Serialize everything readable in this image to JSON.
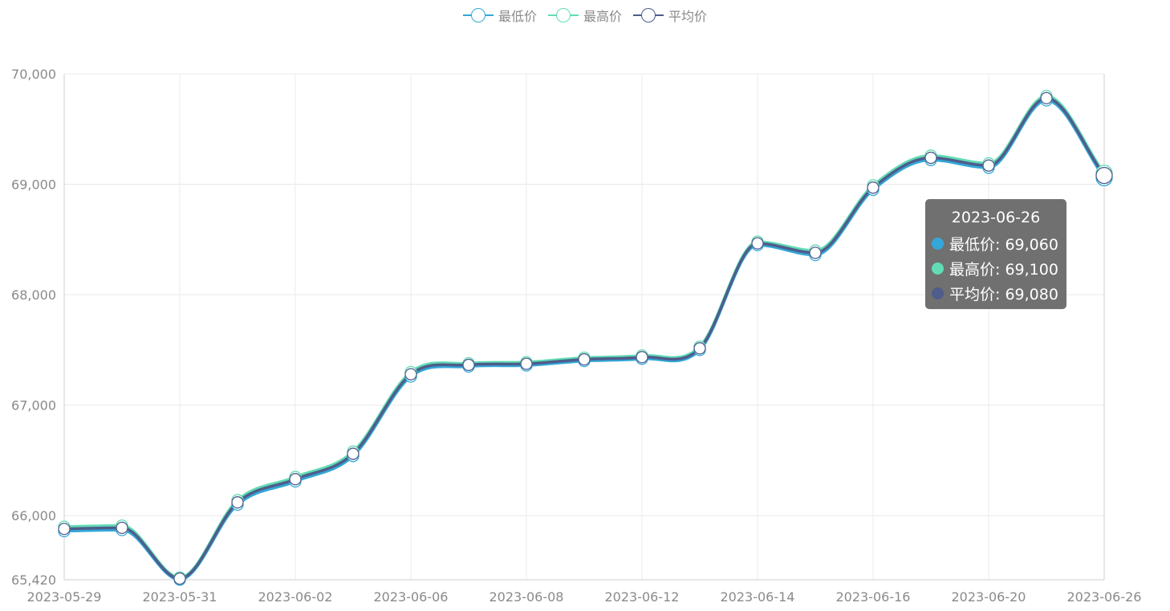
{
  "legend": [
    {
      "label": "最低价",
      "color": "#33a8d8"
    },
    {
      "label": "最高价",
      "color": "#62dcb4"
    },
    {
      "label": "平均价",
      "color": "#4e5d8c"
    }
  ],
  "tooltip": {
    "title": "2023-06-26",
    "rows": [
      {
        "text": "最低价: 69,060",
        "color": "#33a8d8"
      },
      {
        "text": "最高价: 69,100",
        "color": "#62dcb4"
      },
      {
        "text": "平均价: 69,080",
        "color": "#4e5d8c"
      }
    ]
  },
  "chart_data": {
    "type": "line",
    "smooth": true,
    "ylim": [
      65420,
      70000
    ],
    "yticks": [
      {
        "value": 65420,
        "label": "65,420"
      },
      {
        "value": 66000,
        "label": "66,000"
      },
      {
        "value": 67000,
        "label": "67,000"
      },
      {
        "value": 68000,
        "label": "68,000"
      },
      {
        "value": 69000,
        "label": "69,000"
      },
      {
        "value": 70000,
        "label": "70,000"
      }
    ],
    "x": [
      "2023-05-29",
      "2023-05-30",
      "2023-05-31",
      "2023-06-01",
      "2023-06-02",
      "2023-06-05",
      "2023-06-06",
      "2023-06-07",
      "2023-06-08",
      "2023-06-09",
      "2023-06-12",
      "2023-06-13",
      "2023-06-14",
      "2023-06-15",
      "2023-06-16",
      "2023-06-19",
      "2023-06-20",
      "2023-06-21",
      "2023-06-26"
    ],
    "xtick_labels": [
      "2023-05-29",
      "2023-05-31",
      "2023-06-02",
      "2023-06-06",
      "2023-06-08",
      "2023-06-12",
      "2023-06-14",
      "2023-06-16",
      "2023-06-20",
      "2023-06-26"
    ],
    "xtick_label_indices": [
      0,
      2,
      4,
      6,
      8,
      10,
      12,
      14,
      16,
      18
    ],
    "grid": true,
    "legend_position": "top-center",
    "series": [
      {
        "name": "最低价",
        "color": "#33a8d8",
        "values": [
          65860,
          65870,
          65420,
          66100,
          66310,
          66540,
          67260,
          67350,
          67360,
          67400,
          67420,
          67500,
          68450,
          68360,
          68950,
          69220,
          69150,
          69760,
          69060
        ]
      },
      {
        "name": "最高价",
        "color": "#62dcb4",
        "values": [
          65900,
          65910,
          65440,
          66140,
          66350,
          66580,
          67300,
          67380,
          67390,
          67430,
          67450,
          67530,
          68480,
          68400,
          68990,
          69260,
          69190,
          69800,
          69100
        ]
      },
      {
        "name": "平均价",
        "color": "#4e5d8c",
        "values": [
          65880,
          65890,
          65430,
          66120,
          66330,
          66560,
          67280,
          67365,
          67375,
          67415,
          67435,
          67515,
          68465,
          68380,
          68970,
          69240,
          69170,
          69780,
          69080
        ]
      }
    ]
  }
}
